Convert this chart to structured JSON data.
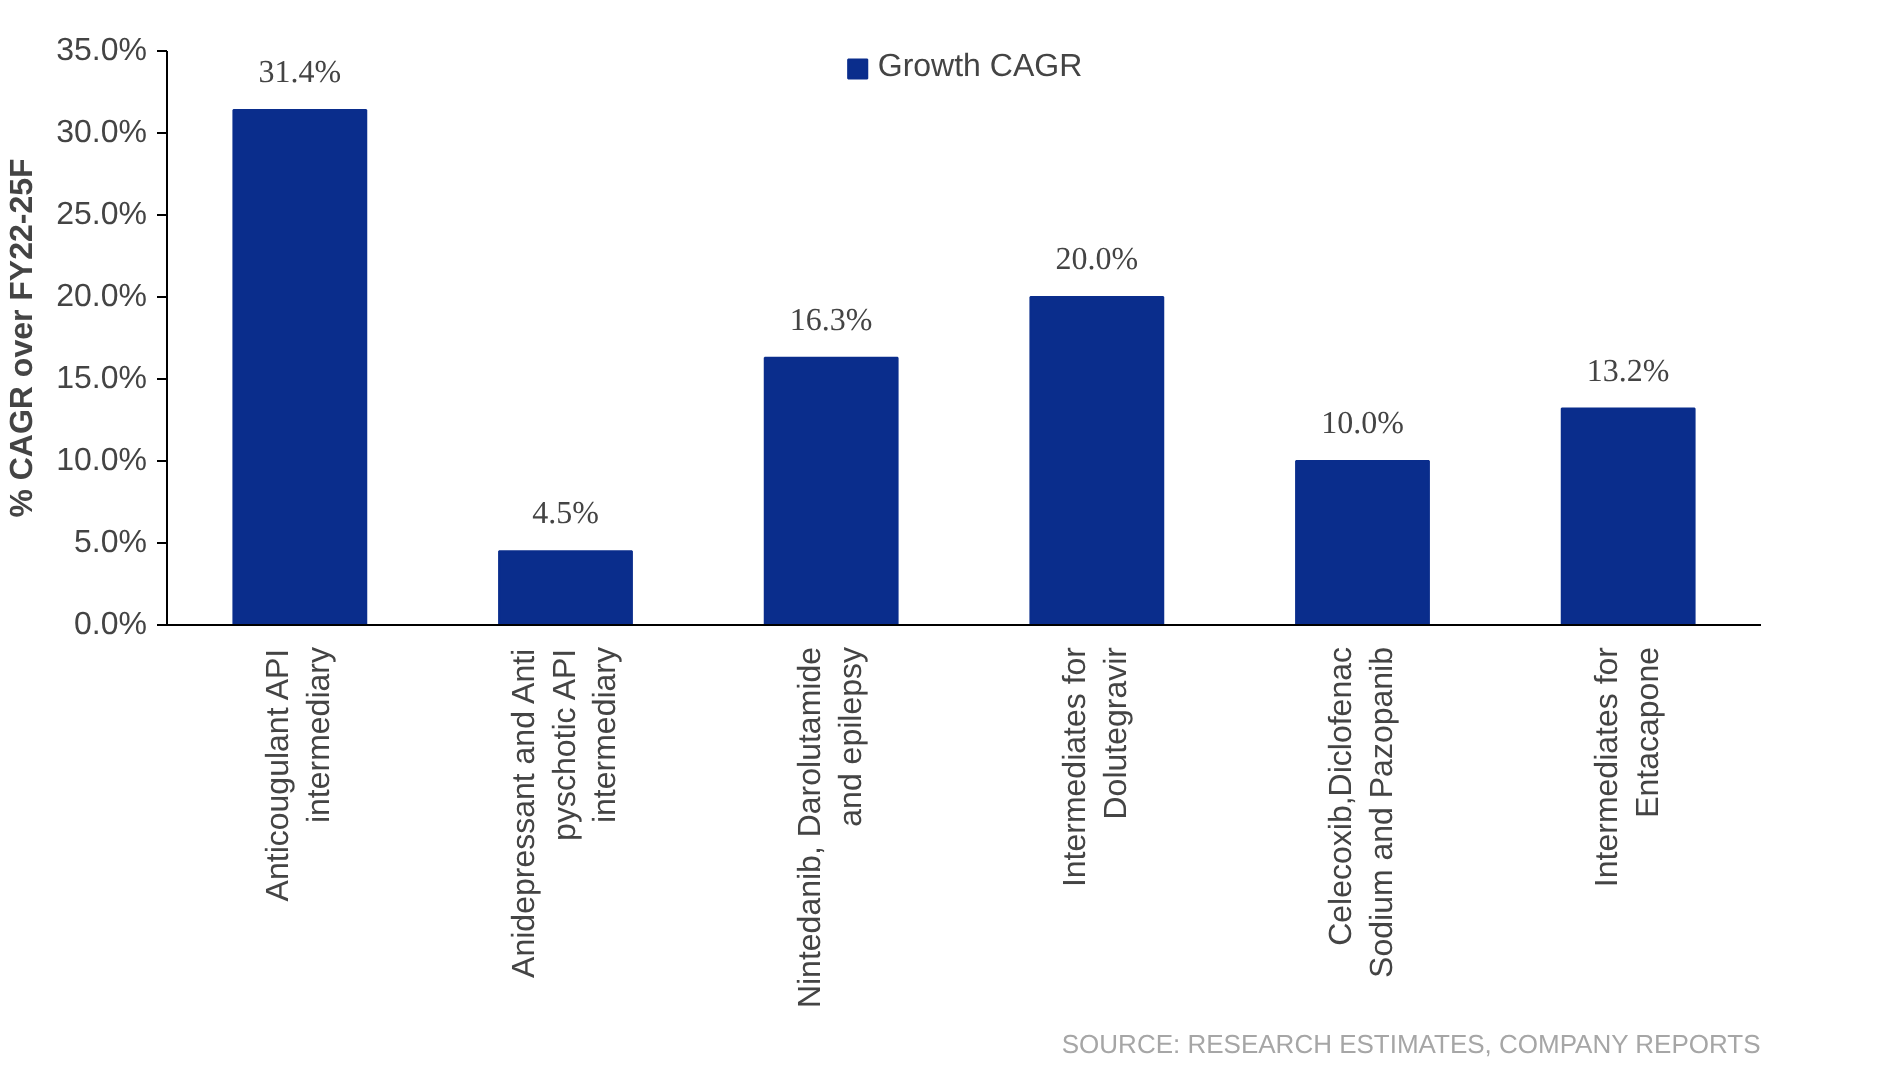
{
  "chart_data": {
    "type": "bar",
    "categories": [
      "Anticougulant API intermediary",
      "Anidepressant and Anti pyschotic API intermediary",
      "Nintedanib, Darolutamide and epilepsy",
      "Intermediates for Dolutegravir",
      "Celecoxib,Diclofenac Sodium and Pazopanib",
      "Intermediates for Entacapone"
    ],
    "series": [
      {
        "name": "Growth CAGR",
        "color": "#0a2d8c",
        "values": [
          31.4,
          4.5,
          16.3,
          20.0,
          10.0,
          13.2
        ],
        "value_labels": [
          "31.4%",
          "4.5%",
          "16.3%",
          "20.0%",
          "10.0%",
          "13.2%"
        ]
      }
    ],
    "ylabel": "% CAGR over FY22-25F",
    "ylim": [
      0,
      35
    ],
    "yticks": [
      {
        "value": 0,
        "label": "0.0%"
      },
      {
        "value": 5,
        "label": "5.0%"
      },
      {
        "value": 10,
        "label": "10.0%"
      },
      {
        "value": 15,
        "label": "15.0%"
      },
      {
        "value": 20,
        "label": "20.0%"
      },
      {
        "value": 25,
        "label": "25.0%"
      },
      {
        "value": 30,
        "label": "30.0%"
      },
      {
        "value": 35,
        "label": "35.0%"
      }
    ],
    "legend": "top",
    "grid": false,
    "annotations": [
      "SOURCE: RESEARCH ESTIMATES, COMPANY REPORTS"
    ]
  }
}
